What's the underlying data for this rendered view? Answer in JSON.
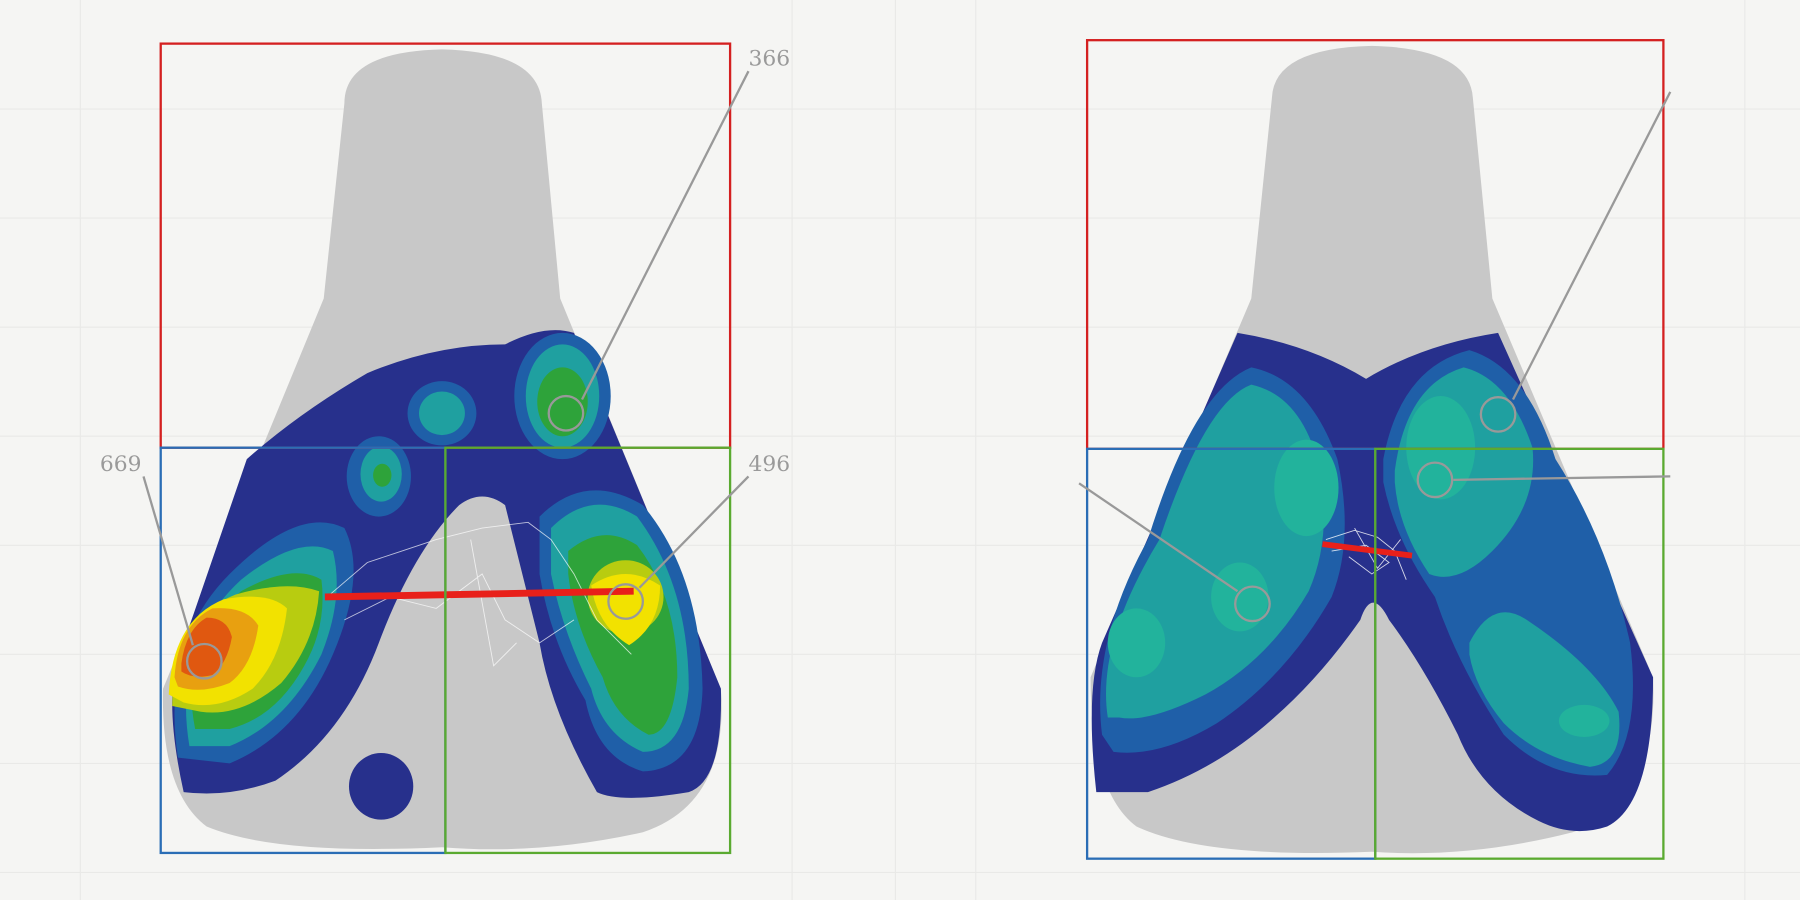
{
  "annotations": [
    "366",
    "669",
    "496"
  ]
}
